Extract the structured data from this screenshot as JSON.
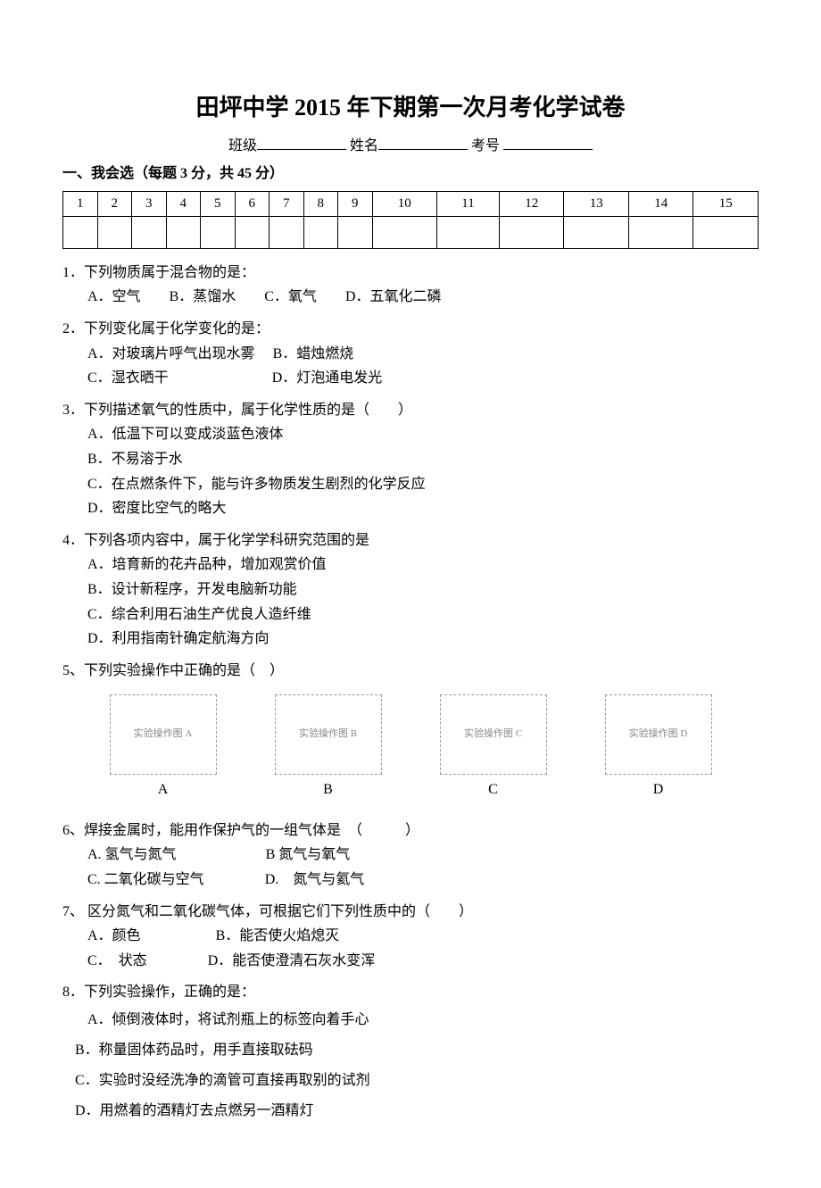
{
  "title": "田坪中学 2015 年下期第一次月考化学试卷",
  "meta": {
    "class_label": "班级",
    "name_label": "姓名",
    "exam_no_label": "考号"
  },
  "section1_heading": "一、我会选（每题 3 分，共 45 分）",
  "answer_numbers": [
    "1",
    "2",
    "3",
    "4",
    "5",
    "6",
    "7",
    "8",
    "9",
    "10",
    "11",
    "12",
    "13",
    "14",
    "15"
  ],
  "q1": {
    "stem": "1．下列物质属于混合物的是：",
    "A": "A．空气",
    "B": "B．蒸馏水",
    "C": "C．氧气",
    "D": "D．五氧化二磷"
  },
  "q2": {
    "stem": "2．下列变化属于化学变化的是：",
    "A": "A．对玻璃片呼气出现水雾",
    "B": "B．蜡烛燃烧",
    "C": "C．湿衣晒干",
    "D": "D．灯泡通电发光"
  },
  "q3": {
    "stem": "3．下列描述氧气的性质中，属于化学性质的是（　　）",
    "A": "A．低温下可以变成淡蓝色液体",
    "B": "B．不易溶于水",
    "C": "C．在点燃条件下，能与许多物质发生剧烈的化学反应",
    "D": "D．密度比空气的略大"
  },
  "q4": {
    "stem": "4．下列各项内容中，属于化学学科研究范围的是",
    "A": "A．培育新的花卉品种，增加观赏价值",
    "B": "B．设计新程序，开发电脑新功能",
    "C": "C．综合利用石油生产优良人造纤维",
    "D": "D．利用指南针确定航海方向"
  },
  "q5": {
    "stem": "5、下列实验操作中正确的是（　）",
    "labels": {
      "A": "A",
      "B": "B",
      "C": "C",
      "D": "D"
    },
    "img_alt": {
      "A": "实验操作图 A",
      "B": "实验操作图 B",
      "C": "实验操作图 C",
      "D": "实验操作图 D"
    }
  },
  "q6": {
    "stem": "6、焊接金属时，能用作保护气的一组气体是　（　　　）",
    "A": "A. 氢气与氮气",
    "B": "B 氮气与氧气",
    "C": "C. 二氧化碳与空气",
    "D": "D.　氮气与氦气"
  },
  "q7": {
    "stem": "7、 区分氮气和二氧化碳气体，可根据它们下列性质中的（　　）",
    "A": "A．颜色",
    "B": "B．能否使火焰熄灭",
    "C": "C．　状态",
    "D": "D．能否使澄清石灰水变浑"
  },
  "q8": {
    "stem": "8．下列实验操作，正确的是：",
    "A": "A．倾倒液体时，将试剂瓶上的标签向着手心",
    "B": "B．称量固体药品时，用手直接取砝码",
    "C": "C．实验时没经洗净的滴管可直接再取别的试剂",
    "D": "D．用燃着的酒精灯去点燃另一酒精灯"
  }
}
